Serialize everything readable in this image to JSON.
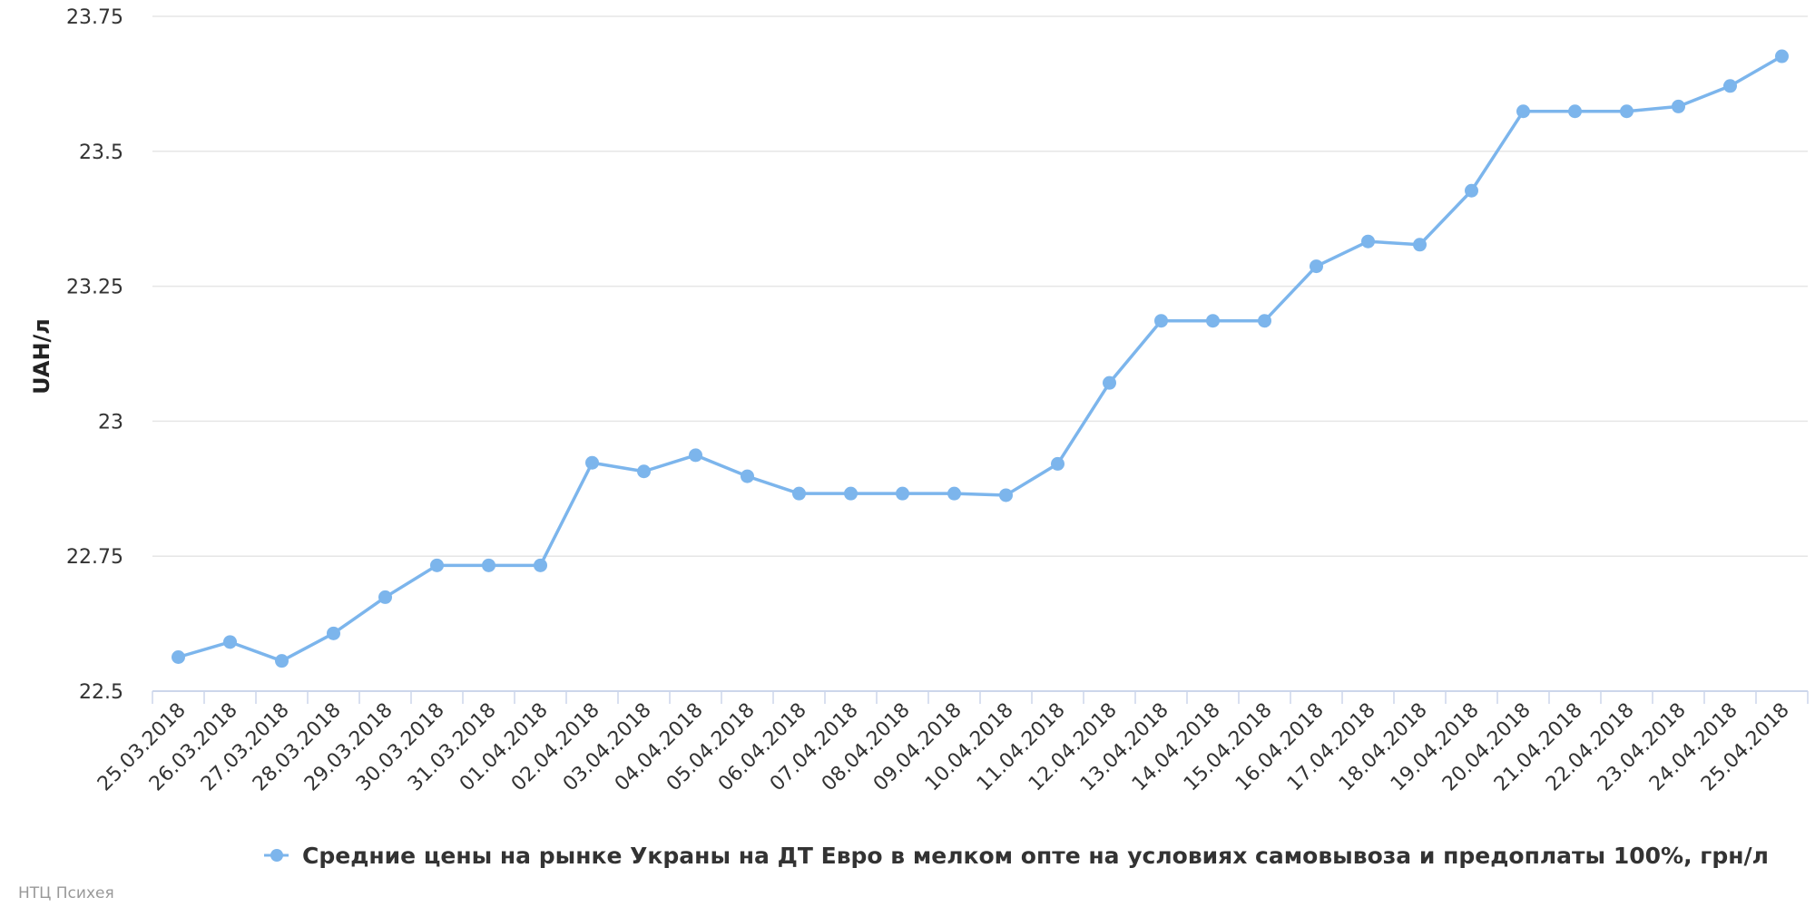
{
  "colors": {
    "series": "#7cb5ec",
    "grid": "#e6e6e6",
    "axis": "#ccd6eb",
    "text": "#333333"
  },
  "credit": "НТЦ Психея",
  "chart_data": {
    "type": "line",
    "title": "",
    "xlabel": "",
    "ylabel": "UAH/л",
    "ylim": [
      22.5,
      23.75
    ],
    "yticks": [
      22.5,
      22.75,
      23,
      23.25,
      23.5,
      23.75
    ],
    "ytick_labels": [
      "22.5",
      "22.75",
      "23",
      "23.25",
      "23.5",
      "23.75"
    ],
    "grid": true,
    "legend": "bottom-center",
    "categories": [
      "25.03.2018",
      "26.03.2018",
      "27.03.2018",
      "28.03.2018",
      "29.03.2018",
      "30.03.2018",
      "31.03.2018",
      "01.04.2018",
      "02.04.2018",
      "03.04.2018",
      "04.04.2018",
      "05.04.2018",
      "06.04.2018",
      "07.04.2018",
      "08.04.2018",
      "09.04.2018",
      "10.04.2018",
      "11.04.2018",
      "12.04.2018",
      "13.04.2018",
      "14.04.2018",
      "15.04.2018",
      "16.04.2018",
      "17.04.2018",
      "18.04.2018",
      "19.04.2018",
      "20.04.2018",
      "21.04.2018",
      "22.04.2018",
      "23.04.2018",
      "24.04.2018",
      "25.04.2018"
    ],
    "series": [
      {
        "name": "Средние цены на рынке Украны на ДТ Евро в мелком опте на условиях самовывоза и предоплаты 100%, грн/л",
        "values": [
          22.563,
          22.591,
          22.556,
          22.607,
          22.674,
          22.733,
          22.733,
          22.733,
          22.923,
          22.907,
          22.937,
          22.898,
          22.866,
          22.866,
          22.866,
          22.866,
          22.863,
          22.921,
          23.071,
          23.186,
          23.186,
          23.186,
          23.287,
          23.333,
          23.327,
          23.427,
          23.574,
          23.574,
          23.574,
          23.583,
          23.621,
          23.676
        ]
      }
    ]
  }
}
